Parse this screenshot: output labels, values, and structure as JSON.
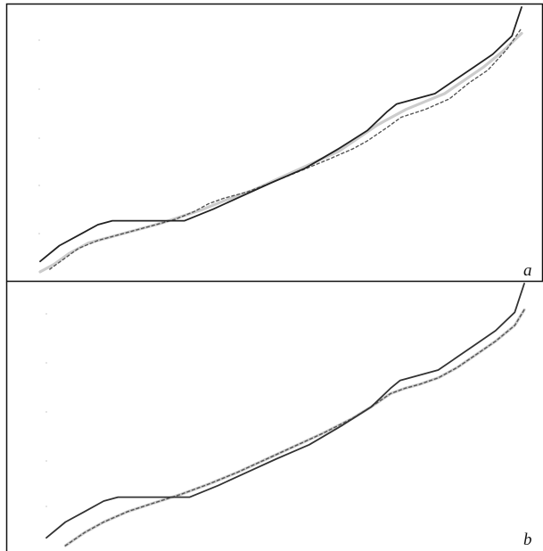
{
  "panels": [
    {
      "label": "a"
    },
    {
      "label": "b"
    }
  ],
  "chart_data": [
    {
      "type": "line",
      "title": "",
      "xlabel": "",
      "ylabel": "",
      "panel_label": "a",
      "xlim": [
        0,
        100
      ],
      "ylim": [
        0,
        100
      ],
      "grid": false,
      "legend": "none",
      "colors": {
        "solid": "#222222",
        "light": "#cccccc",
        "dotted": "#555555"
      },
      "series": [
        {
          "style": "solid",
          "x": [
            0,
            4,
            8,
            12,
            15,
            20,
            25,
            30,
            36,
            42,
            48,
            55,
            62,
            68,
            72,
            74,
            78,
            82,
            86,
            90,
            94,
            98,
            100
          ],
          "y": [
            3,
            9,
            13,
            17,
            18.5,
            18.5,
            18.5,
            18.5,
            23,
            28,
            33,
            38.5,
            46,
            53,
            60,
            63,
            65,
            67,
            72,
            77,
            82,
            89,
            100
          ]
        },
        {
          "style": "light",
          "x": [
            0,
            3,
            6,
            10,
            15,
            20,
            25,
            30,
            34,
            38,
            44,
            50,
            56,
            62,
            66,
            70,
            72,
            76,
            80,
            84,
            88,
            92,
            96,
            100
          ],
          "y": [
            -1,
            2,
            6,
            10,
            12.5,
            15,
            17.5,
            20.5,
            23,
            26,
            30,
            35,
            40,
            45,
            50,
            55,
            57,
            61,
            64,
            67,
            72,
            77,
            83,
            90
          ]
        },
        {
          "style": "dotted",
          "x": [
            2,
            5,
            8,
            12,
            17,
            22,
            28,
            32,
            35,
            38,
            43,
            48,
            54,
            60,
            65,
            68,
            72,
            75,
            80,
            85,
            89,
            93,
            97,
            100
          ],
          "y": [
            0,
            4,
            8,
            11,
            13.5,
            16,
            19,
            22,
            25,
            27,
            29.5,
            33,
            37.5,
            42,
            46,
            49,
            54,
            58,
            61,
            65,
            71,
            76,
            84,
            92
          ]
        }
      ]
    },
    {
      "type": "line",
      "title": "",
      "xlabel": "",
      "ylabel": "",
      "panel_label": "b",
      "xlim": [
        0,
        100
      ],
      "ylim": [
        0,
        100
      ],
      "grid": false,
      "legend": "none",
      "colors": {
        "solid": "#333333",
        "light": "#cccccc",
        "dotted": "#555555"
      },
      "series": [
        {
          "style": "solid",
          "x": [
            0,
            4,
            8,
            12,
            15,
            20,
            25,
            30,
            36,
            42,
            48,
            55,
            62,
            68,
            72,
            74,
            78,
            82,
            86,
            90,
            94,
            98,
            100
          ],
          "y": [
            3,
            9,
            13,
            17,
            18.5,
            18.5,
            18.5,
            18.5,
            23,
            28,
            33,
            38.5,
            46,
            53,
            60,
            63,
            65,
            67,
            72,
            77,
            82,
            89,
            100
          ]
        },
        {
          "style": "light",
          "x": [
            4,
            8,
            12,
            17,
            22,
            28,
            34,
            40,
            46,
            52,
            58,
            64,
            68,
            72,
            75,
            78,
            82,
            86,
            90,
            94,
            98,
            100
          ],
          "y": [
            0,
            5,
            9,
            13,
            16,
            19.5,
            23.5,
            28,
            33,
            38,
            43,
            48.5,
            53,
            58,
            60,
            61.5,
            64,
            68,
            73,
            78,
            84,
            90
          ]
        },
        {
          "style": "dotted",
          "x": [
            4,
            8,
            12,
            17,
            22,
            28,
            34,
            40,
            46,
            52,
            58,
            64,
            68,
            72,
            75,
            78,
            82,
            86,
            90,
            94,
            98,
            100
          ],
          "y": [
            0,
            5,
            9,
            13,
            16,
            19.5,
            23.5,
            28,
            33,
            38,
            43,
            48.5,
            53,
            58,
            60,
            61.5,
            64,
            68,
            73,
            78,
            84,
            90
          ]
        }
      ]
    }
  ]
}
